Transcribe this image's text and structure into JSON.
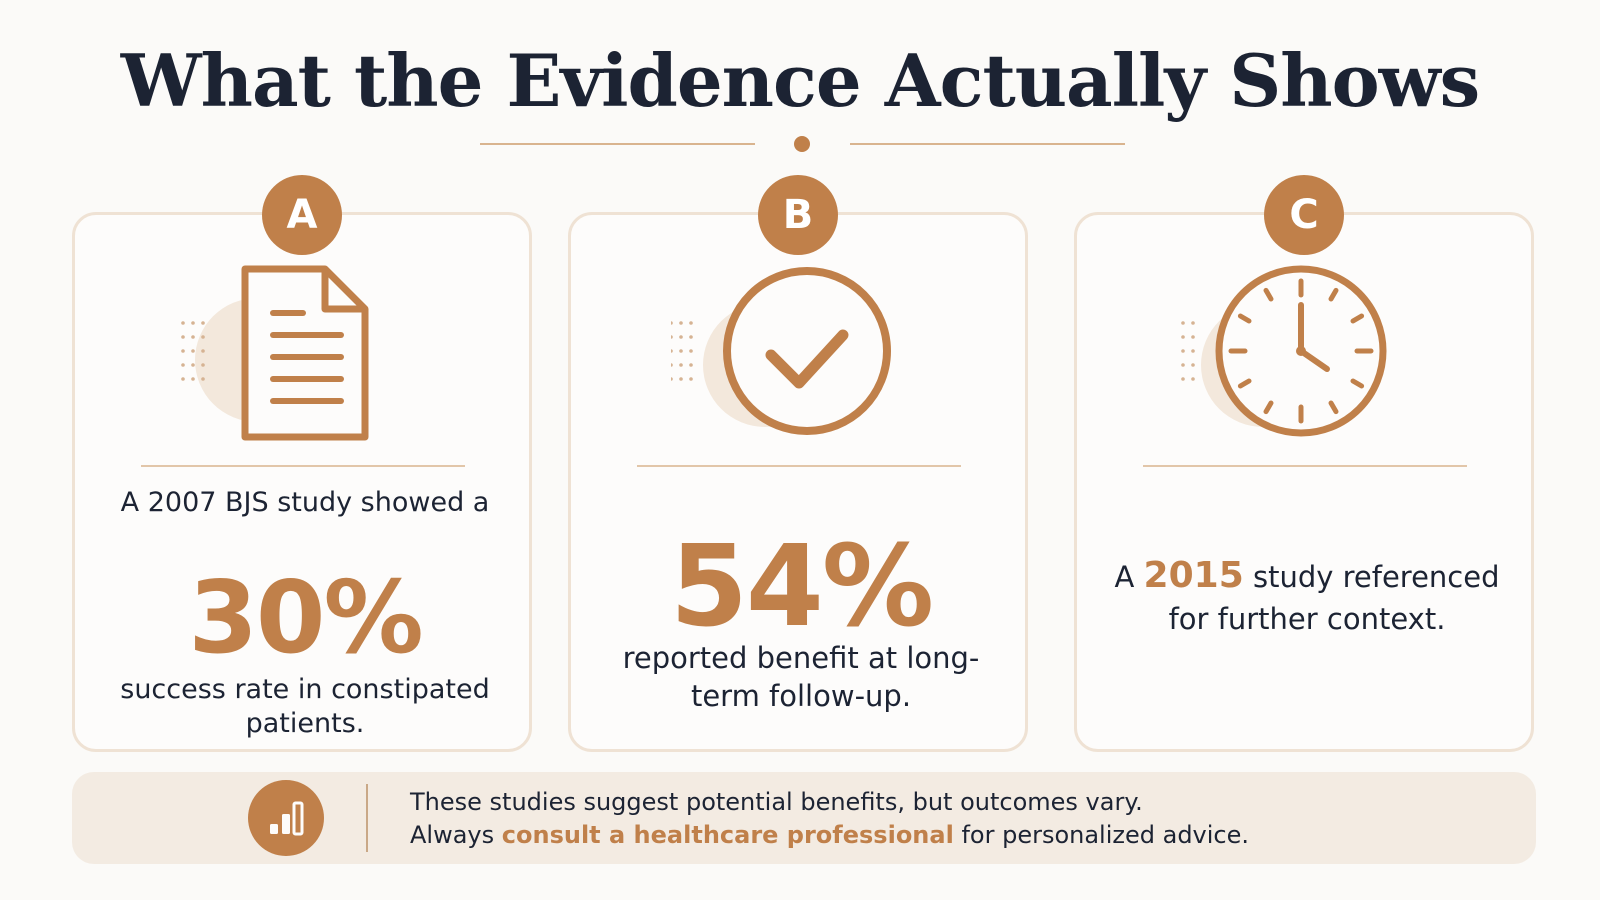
{
  "title": "What the Evidence Actually Shows",
  "colors": {
    "accent": "#c0804a",
    "text": "#1c2333",
    "background": "#fbfaf8",
    "card_border": "#efe2d4",
    "footer_bg": "#f3ebe2"
  },
  "cards": [
    {
      "badge": "A",
      "icon": "document-icon",
      "intro": "A 2007 BJS study showed a",
      "stat": "30%",
      "description": "success rate in constipated patients."
    },
    {
      "badge": "B",
      "icon": "checkmark-circle-icon",
      "stat": "54%",
      "description": "reported benefit at long-term follow-up."
    },
    {
      "badge": "C",
      "icon": "clock-icon",
      "text_before": "A",
      "year": "2015",
      "text_after": "study referenced for further context."
    }
  ],
  "footer": {
    "icon": "bar-chart-icon",
    "line1": "These studies suggest potential benefits, but outcomes vary.",
    "line2_before": "Always",
    "line2_highlight": "consult a healthcare professional",
    "line2_after": "for personalized advice."
  }
}
